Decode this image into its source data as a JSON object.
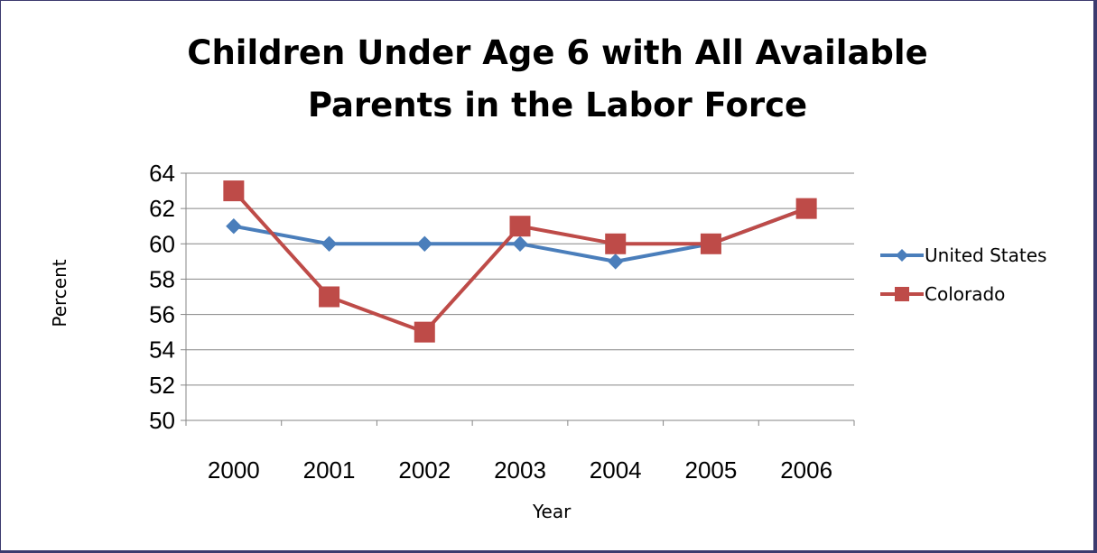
{
  "chart_data": {
    "type": "line",
    "title": "Children Under Age 6 with All Available Parents in the Labor Force",
    "xlabel": "Year",
    "ylabel": "Percent",
    "categories": [
      "2000",
      "2001",
      "2002",
      "2003",
      "2004",
      "2005",
      "2006"
    ],
    "ylim": [
      50,
      64
    ],
    "yticks": [
      50,
      52,
      54,
      56,
      58,
      60,
      62,
      64
    ],
    "grid": true,
    "legend": "right",
    "series": [
      {
        "name": "United States",
        "values": [
          61,
          60,
          60,
          60,
          59,
          60,
          62
        ],
        "color": "#4a7ebb",
        "marker": "diamond"
      },
      {
        "name": "Colorado",
        "values": [
          63,
          57,
          55,
          61,
          60,
          60,
          62
        ],
        "color": "#be4b48",
        "marker": "square"
      }
    ]
  }
}
